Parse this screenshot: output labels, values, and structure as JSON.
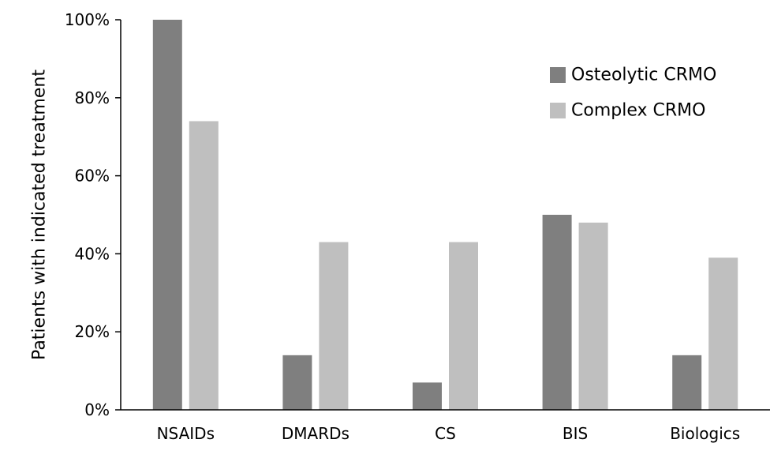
{
  "chart_data": {
    "type": "bar",
    "title": "",
    "xlabel": "",
    "ylabel": "Patients with indicated treatment",
    "ylim": [
      0,
      100
    ],
    "yticks": [
      0,
      20,
      40,
      60,
      80,
      100
    ],
    "ytick_labels": [
      "0%",
      "20%",
      "40%",
      "60%",
      "80%",
      "100%"
    ],
    "categories": [
      "NSAIDs",
      "DMARDs",
      "CS",
      "BIS",
      "Biologics"
    ],
    "series": [
      {
        "name": "Osteolytic CRMO",
        "color": "#7f7f7f",
        "values": [
          100,
          14,
          7,
          50,
          14
        ]
      },
      {
        "name": "Complex CRMO",
        "color": "#bfbfbf",
        "values": [
          74,
          43,
          43,
          48,
          39
        ]
      }
    ],
    "grid": false,
    "legend_position": "top-right"
  }
}
